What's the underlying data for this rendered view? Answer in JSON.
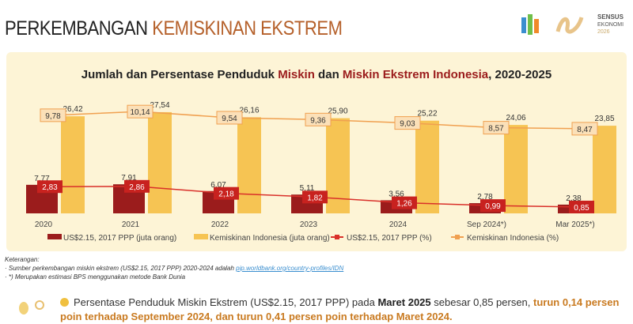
{
  "header": {
    "title_part1": "PERKEMBANGAN ",
    "title_part2": "KEMISKINAN EKSTREM",
    "logo_text": [
      "SENSUS",
      "EKONOMI",
      "2026"
    ]
  },
  "chart_data": {
    "type": "bar",
    "title_parts": [
      "Jumlah dan Persentase Penduduk ",
      "Miskin",
      " dan ",
      "Miskin Ekstrem",
      " Indonesia",
      ", 2020-2025"
    ],
    "categories": [
      "2020",
      "2021",
      "2022",
      "2023",
      "2024",
      "Sep 2024*)",
      "Mar 2025*)"
    ],
    "series": [
      {
        "name": "US$2.15, 2017 PPP (juta orang)",
        "kind": "bar",
        "color": "#9b1c1c",
        "values": [
          7.77,
          7.91,
          6.07,
          5.11,
          3.56,
          2.78,
          2.38
        ],
        "labels": [
          "7,77",
          "7,91",
          "6,07",
          "5,11",
          "3,56",
          "2,78",
          "2,38"
        ]
      },
      {
        "name": "Kemiskinan Indonesia (juta orang)",
        "kind": "bar",
        "color": "#f6c453",
        "values": [
          26.42,
          27.54,
          26.16,
          25.9,
          25.22,
          24.06,
          23.85
        ],
        "labels": [
          "26,42",
          "27,54",
          "26,16",
          "25,90",
          "25,22",
          "24,06",
          "23,85"
        ]
      },
      {
        "name": "US$2.15, 2017 PPP (%)",
        "kind": "line",
        "color": "#d9302a",
        "values": [
          2.83,
          2.86,
          2.18,
          1.82,
          1.26,
          0.99,
          0.85
        ],
        "labels": [
          "2,83",
          "2,86",
          "2,18",
          "1,82",
          "1,26",
          "0,99",
          "0,85"
        ]
      },
      {
        "name": "Kemiskinan Indonesia (%)",
        "kind": "line",
        "color": "#f0a050",
        "values": [
          9.78,
          10.14,
          9.54,
          9.36,
          9.03,
          8.57,
          8.47
        ],
        "labels": [
          "9,78",
          "10,14",
          "9,54",
          "9,36",
          "9,03",
          "8,57",
          "8,47"
        ]
      }
    ],
    "legend_position": "bottom",
    "grid": false
  },
  "notes": {
    "heading": "Keterangan:",
    "line1": "Sumber perkembangan miskin ekstrem (US$2.15, 2017 PPP) 2020-2024 adalah ",
    "link": "pip.worldbank.org/country-profiles/IDN",
    "line2": "*) Merupakan estimasi BPS menggunakan metode Bank Dunia"
  },
  "summary": {
    "t1": "Persentase Penduduk Miskin Ekstrem (US$2.15, 2017 PPP) pada ",
    "t2": "Maret 2025",
    "t3": " sebesar 0,85 persen, ",
    "t4": "turun 0,14 persen poin terhadap September 2024, dan turun 0,41 persen poin terhadap Maret 2024."
  }
}
